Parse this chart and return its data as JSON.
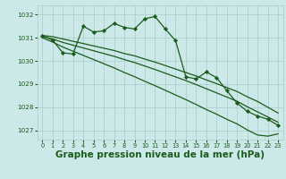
{
  "bg_color": "#cce8e8",
  "grid_color": "#aacccc",
  "line_color": "#1a5c1a",
  "xlabel": "Graphe pression niveau de la mer (hPa)",
  "xlabel_fontsize": 7.5,
  "ylim": [
    1026.6,
    1032.4
  ],
  "xlim": [
    -0.5,
    23.5
  ],
  "yticks": [
    1027,
    1028,
    1029,
    1030,
    1031,
    1032
  ],
  "xticks": [
    0,
    1,
    2,
    3,
    4,
    5,
    6,
    7,
    8,
    9,
    10,
    11,
    12,
    13,
    14,
    15,
    16,
    17,
    18,
    19,
    20,
    21,
    22,
    23
  ],
  "series": [
    {
      "x": [
        0,
        1,
        2,
        3,
        4,
        5,
        6,
        7,
        8,
        9,
        10,
        11,
        12,
        13,
        14,
        15,
        16,
        17,
        18,
        19,
        20,
        21,
        22,
        23
      ],
      "y": [
        1031.1,
        1031.05,
        1030.95,
        1030.85,
        1030.75,
        1030.65,
        1030.55,
        1030.45,
        1030.32,
        1030.22,
        1030.08,
        1029.95,
        1029.8,
        1029.65,
        1029.5,
        1029.35,
        1029.18,
        1029.02,
        1028.85,
        1028.68,
        1028.45,
        1028.25,
        1028.0,
        1027.75
      ],
      "marker": null,
      "linewidth": 0.9
    },
    {
      "x": [
        0,
        1,
        2,
        3,
        4,
        5,
        6,
        7,
        8,
        9,
        10,
        11,
        12,
        13,
        14,
        15,
        16,
        17,
        18,
        19,
        20,
        21,
        22,
        23
      ],
      "y": [
        1031.05,
        1030.95,
        1030.8,
        1030.68,
        1030.56,
        1030.44,
        1030.32,
        1030.2,
        1030.06,
        1029.93,
        1029.78,
        1029.63,
        1029.47,
        1029.31,
        1029.15,
        1028.98,
        1028.8,
        1028.62,
        1028.44,
        1028.26,
        1028.02,
        1027.8,
        1027.58,
        1027.35
      ],
      "marker": null,
      "linewidth": 0.9
    },
    {
      "x": [
        0,
        1,
        2,
        3,
        4,
        5,
        6,
        7,
        8,
        9,
        10,
        11,
        12,
        13,
        14,
        15,
        16,
        17,
        18,
        19,
        20,
        21,
        22,
        23
      ],
      "y": [
        1031.0,
        1030.82,
        1030.6,
        1030.42,
        1030.24,
        1030.06,
        1029.88,
        1029.7,
        1029.5,
        1029.32,
        1029.12,
        1028.93,
        1028.73,
        1028.53,
        1028.33,
        1028.12,
        1027.9,
        1027.7,
        1027.48,
        1027.28,
        1027.02,
        1026.8,
        1026.75,
        1026.85
      ],
      "marker": null,
      "linewidth": 0.9
    },
    {
      "x": [
        0,
        1,
        2,
        3,
        4,
        5,
        6,
        7,
        8,
        9,
        10,
        11,
        12,
        13,
        14,
        15,
        16,
        17,
        18,
        19,
        20,
        21,
        22,
        23
      ],
      "y": [
        1031.1,
        1030.9,
        1030.35,
        1030.3,
        1031.5,
        1031.25,
        1031.3,
        1031.62,
        1031.45,
        1031.38,
        1031.82,
        1031.92,
        1031.38,
        1030.88,
        1029.32,
        1029.22,
        1029.52,
        1029.28,
        1028.72,
        1028.18,
        1027.82,
        1027.62,
        1027.48,
        1027.22
      ],
      "marker": "D",
      "markersize": 2.2,
      "linewidth": 0.9
    }
  ]
}
